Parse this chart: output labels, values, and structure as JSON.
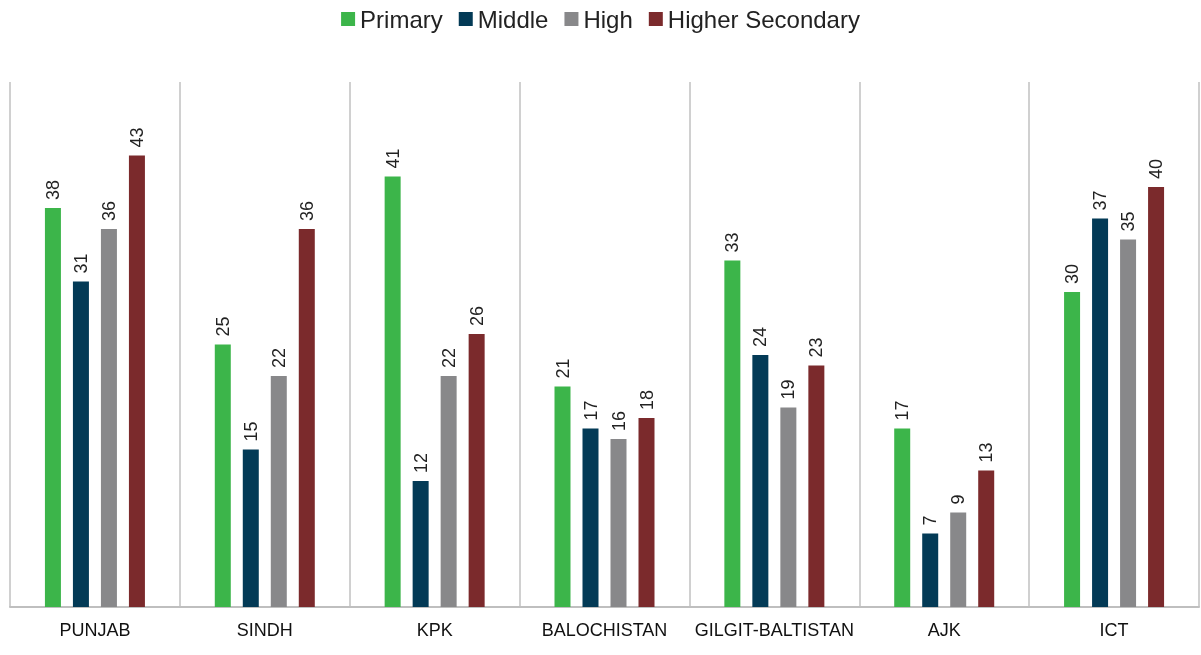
{
  "chart_data": {
    "type": "bar",
    "categories": [
      "PUNJAB",
      "SINDH",
      "KPK",
      "BALOCHISTAN",
      "GILGIT-BALTISTAN",
      "AJK",
      "ICT"
    ],
    "series": [
      {
        "name": "Primary",
        "color": "#3cb54a",
        "values": [
          38,
          25,
          41,
          21,
          33,
          17,
          30
        ]
      },
      {
        "name": "Middle",
        "color": "#033a56",
        "values": [
          31,
          15,
          12,
          17,
          24,
          7,
          37
        ]
      },
      {
        "name": "High",
        "color": "#88888a",
        "values": [
          36,
          22,
          22,
          16,
          19,
          9,
          35
        ]
      },
      {
        "name": "Higher Secondary",
        "color": "#7b2a2c",
        "values": [
          43,
          36,
          26,
          18,
          23,
          13,
          40
        ]
      }
    ],
    "data_labels": true,
    "legend": "top",
    "grid": "x",
    "tick_labels": "x"
  }
}
